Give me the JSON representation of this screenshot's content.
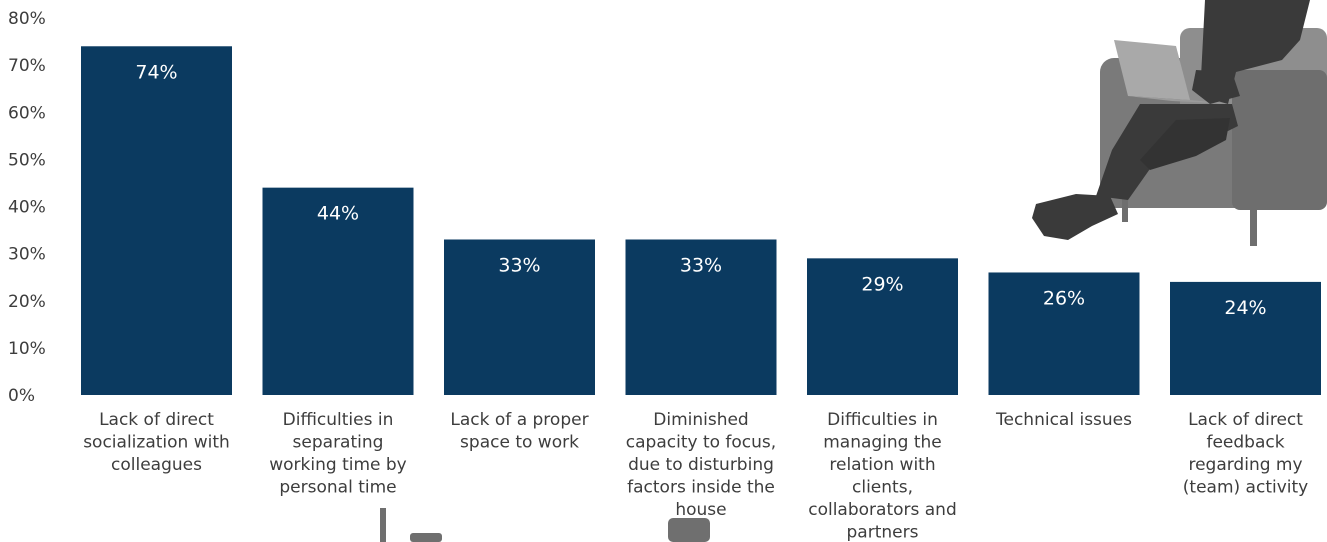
{
  "chart_data": {
    "type": "bar",
    "categories": [
      [
        "Lack of direct",
        "socialization with",
        "colleagues"
      ],
      [
        "Difficulties in",
        "separating",
        "working time by",
        "personal time"
      ],
      [
        "Lack of a proper",
        "space to work"
      ],
      [
        "Diminished",
        "capacity to focus,",
        "due to disturbing",
        "factors inside the",
        "house"
      ],
      [
        "Difficulties in",
        "managing the",
        "relation with",
        "clients,",
        "collaborators and",
        "partners"
      ],
      [
        "Technical issues"
      ],
      [
        "Lack of direct",
        "feedback",
        "regarding my",
        "(team) activity"
      ]
    ],
    "values": [
      74,
      44,
      33,
      33,
      29,
      26,
      24
    ],
    "data_labels": [
      "74%",
      "44%",
      "33%",
      "33%",
      "29%",
      "26%",
      "24%"
    ],
    "yticks": [
      "0%",
      "10%",
      "20%",
      "30%",
      "40%",
      "50%",
      "60%",
      "70%",
      "80%"
    ],
    "ylim": [
      0,
      80
    ],
    "grid": false,
    "legend": "none",
    "colors": {
      "bar": "#0b3a60",
      "data_label": "#ffffff",
      "text": "#3d3d3d"
    }
  },
  "decoration": {
    "illustration": "person-in-armchair-with-laptop-silhouette"
  }
}
